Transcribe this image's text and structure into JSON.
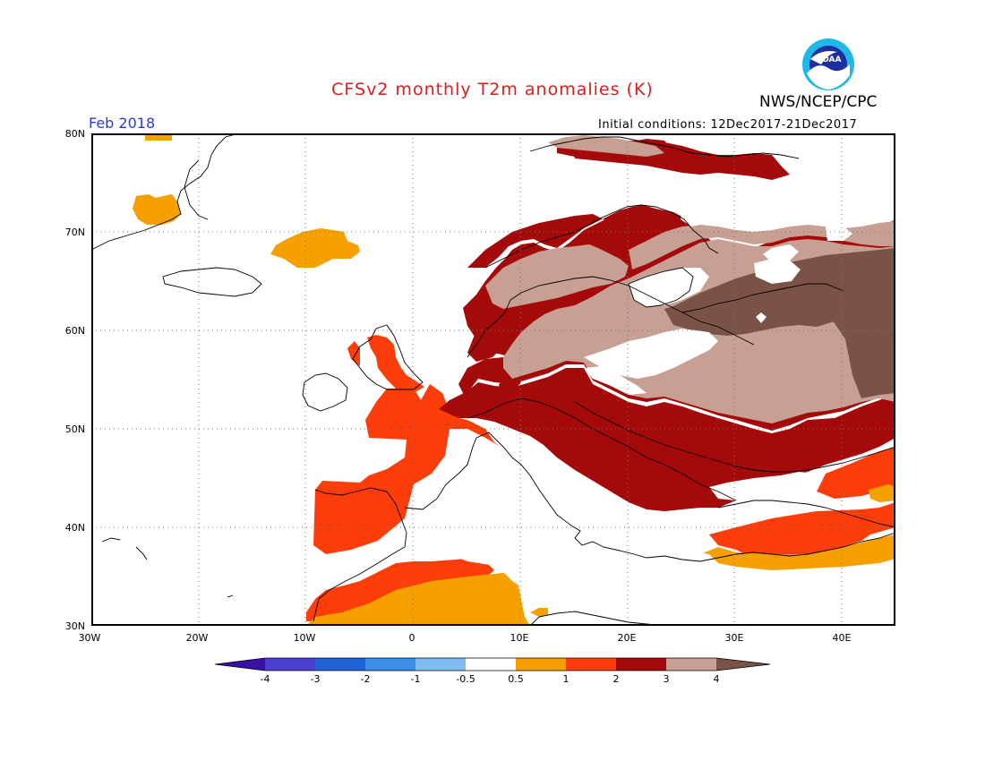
{
  "title": "CFSv2 monthly T2m anomalies (K)",
  "agency": "NWS/NCEP/CPC",
  "logo_text": "NOAA",
  "month": "Feb 2018",
  "initial_conditions": "Initial conditions: 12Dec2017-21Dec2017",
  "lat_labels": [
    "80N",
    "70N",
    "60N",
    "50N",
    "40N",
    "30N"
  ],
  "lon_labels": [
    "30W",
    "20W",
    "10W",
    "0",
    "10E",
    "20E",
    "30E",
    "40E"
  ],
  "colorbar": {
    "ticks": [
      "-4",
      "-3",
      "-2",
      "-1",
      "-0.5",
      "0.5",
      "1",
      "2",
      "3",
      "4"
    ],
    "colors": [
      "#3a0fa6",
      "#4a3fd0",
      "#1f63d6",
      "#3a8fea",
      "#7fbcf2",
      "#ffffff",
      "#f6a000",
      "#fd3d0a",
      "#a50a0a",
      "#c79f93",
      "#7a5246"
    ]
  },
  "map": {
    "domain": {
      "lon": [
        -30,
        45
      ],
      "lat": [
        30,
        80
      ]
    },
    "anomaly_regions": [
      {
        "region": "Scandinavia / NW Russia",
        "anomaly": "3-4"
      },
      {
        "region": "Central Russia",
        "anomaly": ">4"
      },
      {
        "region": "Central Europe",
        "anomaly": "2-3"
      },
      {
        "region": "Western Europe / Iberia",
        "anomaly": "1-2"
      },
      {
        "region": "North Africa",
        "anomaly": "0.5-2"
      },
      {
        "region": "Turkey",
        "anomaly": "0.5-2"
      },
      {
        "region": "Iceland",
        "anomaly": "0.5-2"
      },
      {
        "region": "Mediterranean Sea",
        "anomaly": "-0.5-0.5"
      }
    ]
  }
}
